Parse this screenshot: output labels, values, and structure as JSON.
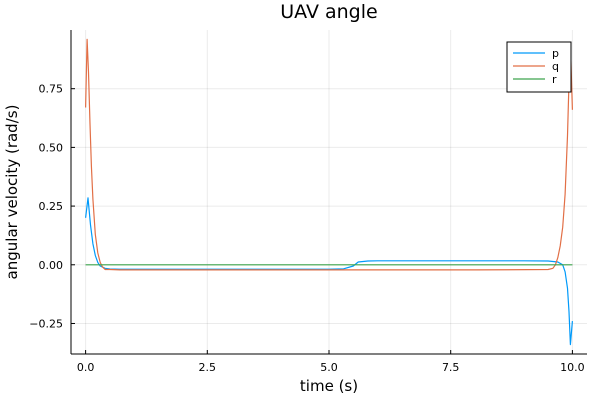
{
  "chart_data": {
    "type": "line",
    "title": "UAV angle",
    "xlabel": "time (s)",
    "ylabel": "angular velocity (rad/s)",
    "xlim": [
      -0.3,
      10.3
    ],
    "ylim": [
      -0.38,
      1.0
    ],
    "xticks": [
      0.0,
      2.5,
      5.0,
      7.5,
      10.0
    ],
    "xtick_labels": [
      "0.0",
      "2.5",
      "5.0",
      "7.5",
      "10.0"
    ],
    "yticks": [
      -0.25,
      0.0,
      0.25,
      0.5,
      0.75
    ],
    "ytick_labels": [
      "−0.25",
      "0.00",
      "0.25",
      "0.50",
      "0.75"
    ],
    "grid": true,
    "legend_position": "top-right",
    "series": [
      {
        "name": "p",
        "color": "#009AFA",
        "x": [
          0.0,
          0.05,
          0.1,
          0.15,
          0.2,
          0.25,
          0.3,
          0.4,
          0.5,
          0.7,
          1.0,
          2.0,
          3.0,
          4.0,
          5.0,
          5.3,
          5.5,
          5.6,
          5.8,
          6.0,
          7.0,
          8.0,
          9.0,
          9.5,
          9.7,
          9.8,
          9.85,
          9.9,
          9.93,
          9.96,
          10.0
        ],
        "y": [
          0.2,
          0.285,
          0.17,
          0.09,
          0.04,
          0.01,
          -0.005,
          -0.015,
          -0.018,
          -0.019,
          -0.019,
          -0.019,
          -0.019,
          -0.019,
          -0.019,
          -0.017,
          -0.005,
          0.012,
          0.016,
          0.017,
          0.017,
          0.017,
          0.017,
          0.016,
          0.012,
          0.0,
          -0.03,
          -0.1,
          -0.2,
          -0.34,
          -0.24
        ]
      },
      {
        "name": "q",
        "color": "#E26F46",
        "x": [
          0.0,
          0.03,
          0.06,
          0.09,
          0.12,
          0.15,
          0.2,
          0.25,
          0.3,
          0.35,
          0.4,
          0.5,
          0.7,
          1.0,
          2.0,
          4.0,
          6.0,
          8.0,
          9.5,
          9.6,
          9.65,
          9.7,
          9.75,
          9.8,
          9.85,
          9.9,
          9.93,
          9.96,
          10.0
        ],
        "y": [
          0.67,
          0.96,
          0.82,
          0.6,
          0.42,
          0.28,
          0.13,
          0.05,
          0.01,
          -0.01,
          -0.02,
          -0.02,
          -0.022,
          -0.022,
          -0.022,
          -0.022,
          -0.022,
          -0.022,
          -0.02,
          -0.015,
          0.0,
          0.03,
          0.08,
          0.16,
          0.3,
          0.55,
          0.78,
          0.94,
          0.66
        ]
      },
      {
        "name": "r",
        "color": "#3DA44D",
        "x": [
          0.0,
          10.0
        ],
        "y": [
          0.0,
          0.0
        ]
      }
    ]
  }
}
